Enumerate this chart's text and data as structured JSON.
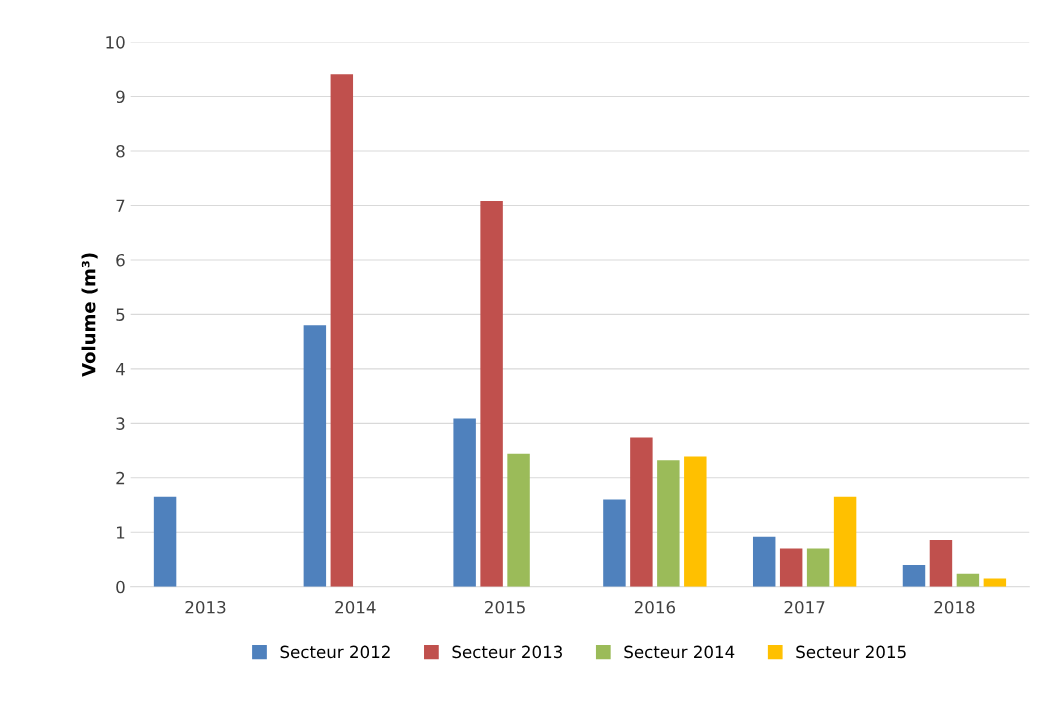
{
  "chart_data": {
    "type": "bar",
    "ylabel": "Volume (m³)",
    "categories": [
      "2013",
      "2014",
      "2015",
      "2016",
      "2017",
      "2018"
    ],
    "series": [
      {
        "name": "Secteur 2012",
        "color": "#4f81bd",
        "values": [
          1.65,
          4.8,
          3.09,
          1.6,
          0.92,
          0.4
        ]
      },
      {
        "name": "Secteur 2013",
        "color": "#c0504d",
        "values": [
          null,
          9.41,
          7.08,
          2.74,
          0.7,
          0.86
        ]
      },
      {
        "name": "Secteur 2014",
        "color": "#9bbb59",
        "values": [
          null,
          null,
          2.44,
          2.32,
          0.7,
          0.24
        ]
      },
      {
        "name": "Secteur 2015",
        "color": "#ffc000",
        "values": [
          null,
          null,
          null,
          2.39,
          1.65,
          0.15
        ]
      }
    ],
    "ylim": [
      0,
      10
    ],
    "yticks": [
      0,
      1,
      2,
      3,
      4,
      5,
      6,
      7,
      8,
      9,
      10
    ],
    "grid": "y",
    "legend": "bottom"
  }
}
